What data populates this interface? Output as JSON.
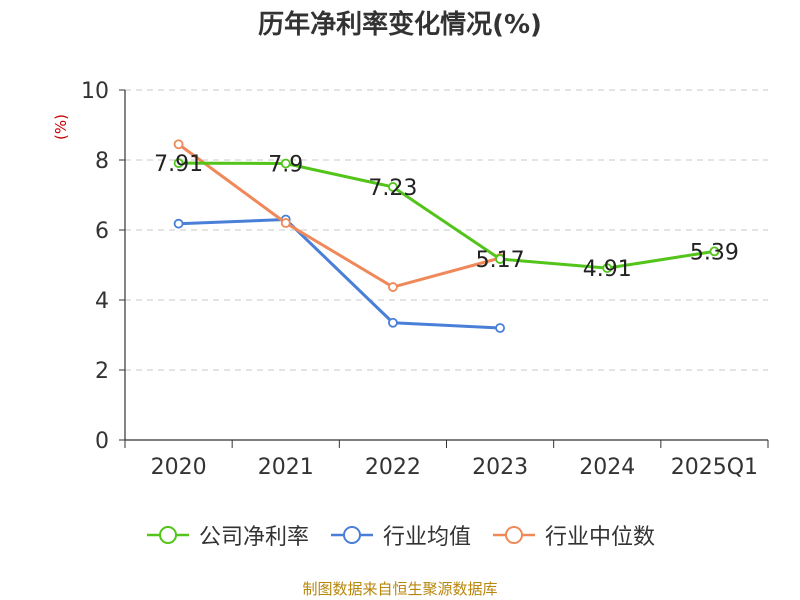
{
  "chart_data": {
    "type": "line",
    "title": "历年净利率变化情况(%)",
    "ylabel": "(%)",
    "xlabel": "",
    "categories": [
      "2020",
      "2021",
      "2022",
      "2023",
      "2024",
      "2025Q1"
    ],
    "ylim": [
      0,
      10
    ],
    "yticks": [
      0,
      2,
      4,
      6,
      8,
      10
    ],
    "grid": "horizontal dashed",
    "legend_position": "bottom",
    "series": [
      {
        "name": "公司净利率",
        "color": "#52c41a",
        "values": [
          7.91,
          7.9,
          7.23,
          5.17,
          4.91,
          5.39
        ],
        "labels": [
          "7.91",
          "7.9",
          "7.23",
          "5.17",
          "4.91",
          "5.39"
        ]
      },
      {
        "name": "行业均值",
        "color": "#4a7fd8",
        "values": [
          6.18,
          6.3,
          3.35,
          3.2,
          null,
          null
        ]
      },
      {
        "name": "行业中位数",
        "color": "#f0895a",
        "values": [
          8.45,
          6.2,
          4.37,
          5.2,
          null,
          null
        ]
      }
    ],
    "source": "制图数据来自恒生聚源数据库"
  }
}
